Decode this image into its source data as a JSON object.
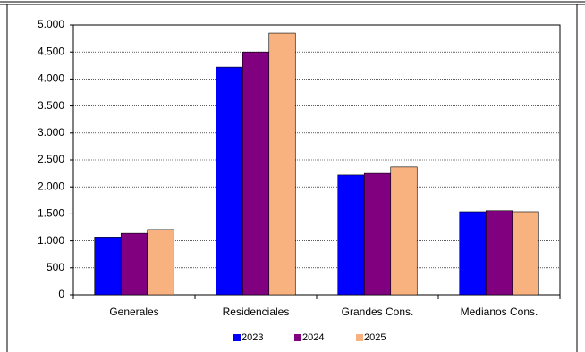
{
  "chart_data": {
    "type": "bar",
    "categories": [
      "Generales",
      "Residenciales",
      "Grandes Cons.",
      "Medianos Cons."
    ],
    "series": [
      {
        "name": "2023",
        "color": "#0000ff",
        "values": [
          1070,
          4220,
          2220,
          1540
        ]
      },
      {
        "name": "2024",
        "color": "#800080",
        "values": [
          1140,
          4500,
          2250,
          1560
        ]
      },
      {
        "name": "2025",
        "color": "#f8b27f",
        "values": [
          1210,
          4850,
          2370,
          1540
        ]
      }
    ],
    "ylim": [
      0,
      5000
    ],
    "yticks": [
      0,
      500,
      {
        "value": 1000,
        "label": "1.000"
      },
      {
        "value": 1500,
        "label": "1.500"
      },
      {
        "value": 2000,
        "label": "2.000"
      },
      {
        "value": 2500,
        "label": "2.500"
      },
      {
        "value": 3000,
        "label": "3.000"
      },
      {
        "value": 3500,
        "label": "3.500"
      },
      {
        "value": 4000,
        "label": "4.000"
      },
      {
        "value": 4500,
        "label": "4.500"
      },
      {
        "value": 5000,
        "label": "5.000"
      }
    ],
    "grid": true,
    "legend": "bottom"
  }
}
